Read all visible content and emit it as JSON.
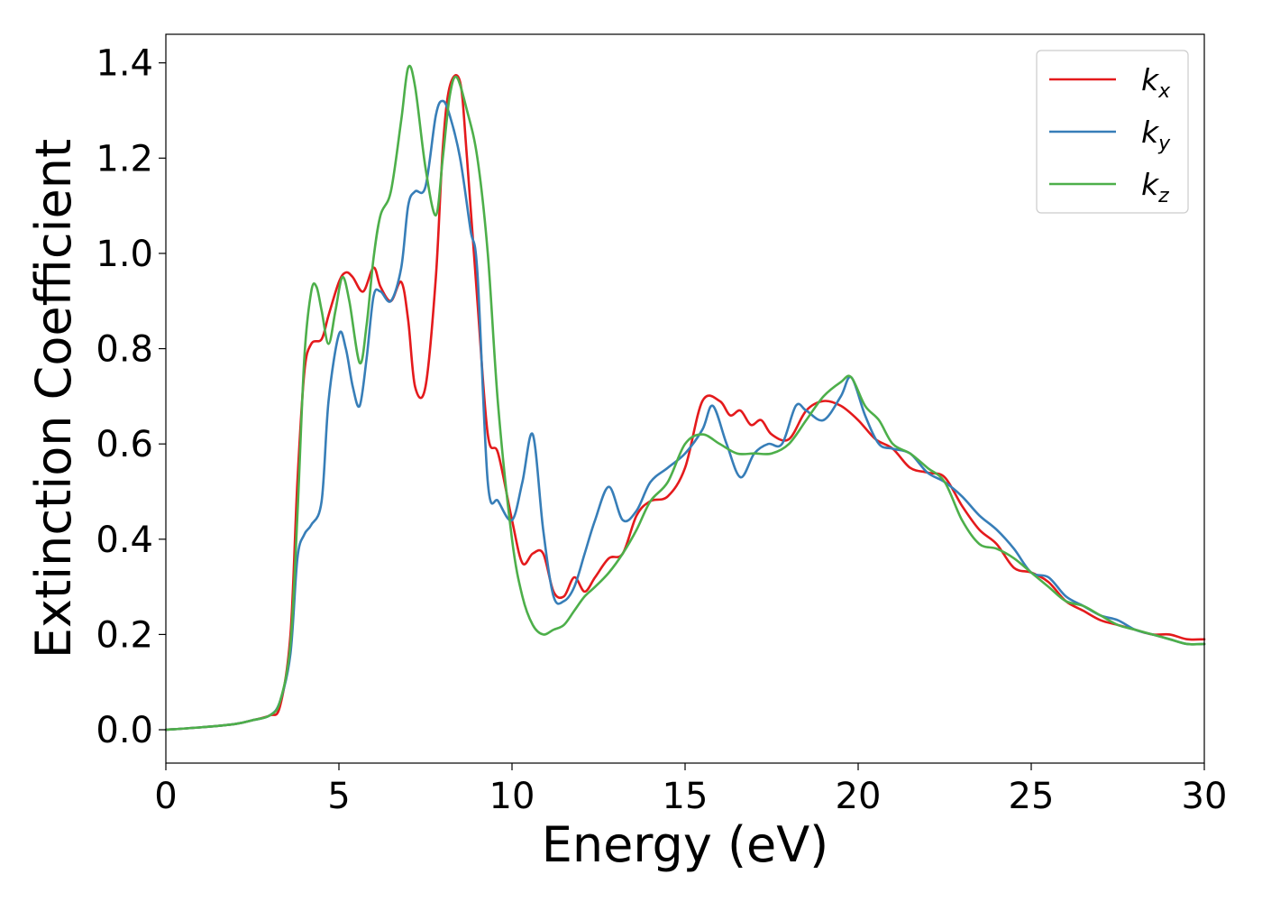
{
  "chart_data": {
    "type": "line",
    "title": "",
    "xlabel": "Energy (eV)",
    "ylabel": "Extinction Coefficient",
    "xlim": [
      0,
      30
    ],
    "ylim": [
      -0.07,
      1.46
    ],
    "xticks": [
      0,
      5,
      10,
      15,
      20,
      25,
      30
    ],
    "xtick_labels": [
      "0",
      "5",
      "10",
      "15",
      "20",
      "25",
      "30"
    ],
    "yticks": [
      0.0,
      0.2,
      0.4,
      0.6,
      0.8,
      1.0,
      1.2,
      1.4
    ],
    "ytick_labels": [
      "0.0",
      "0.2",
      "0.4",
      "0.6",
      "0.8",
      "1.0",
      "1.2",
      "1.4"
    ],
    "grid": false,
    "legend_position": "top-right",
    "series": [
      {
        "name": "k_x",
        "legend_base": "k",
        "legend_sub": "x",
        "color": "#e41a1c",
        "x": [
          0,
          1,
          2,
          2.5,
          3,
          3.3,
          3.6,
          3.8,
          4.0,
          4.2,
          4.5,
          4.7,
          5.0,
          5.2,
          5.4,
          5.7,
          6.0,
          6.2,
          6.5,
          6.8,
          7.0,
          7.2,
          7.5,
          7.8,
          8.0,
          8.2,
          8.5,
          8.7,
          9.0,
          9.3,
          9.6,
          10.0,
          10.3,
          10.6,
          10.9,
          11.2,
          11.5,
          11.8,
          12.1,
          12.4,
          12.8,
          13.2,
          13.6,
          14.0,
          14.5,
          15.0,
          15.5,
          16.0,
          16.3,
          16.6,
          16.9,
          17.2,
          17.5,
          18.0,
          18.5,
          19.0,
          19.5,
          20.0,
          20.5,
          21.0,
          21.5,
          22.0,
          22.5,
          23.0,
          23.5,
          24.0,
          24.5,
          25.0,
          25.5,
          26.0,
          26.5,
          27.0,
          27.5,
          28.0,
          28.5,
          29.0,
          29.5,
          30.0
        ],
        "y": [
          0.0,
          0.005,
          0.012,
          0.02,
          0.03,
          0.05,
          0.2,
          0.52,
          0.75,
          0.81,
          0.82,
          0.87,
          0.94,
          0.96,
          0.95,
          0.92,
          0.97,
          0.93,
          0.9,
          0.94,
          0.86,
          0.72,
          0.72,
          0.95,
          1.22,
          1.35,
          1.36,
          1.2,
          0.9,
          0.62,
          0.58,
          0.44,
          0.35,
          0.37,
          0.37,
          0.29,
          0.28,
          0.32,
          0.29,
          0.32,
          0.36,
          0.37,
          0.45,
          0.48,
          0.49,
          0.55,
          0.69,
          0.69,
          0.66,
          0.67,
          0.64,
          0.65,
          0.62,
          0.61,
          0.67,
          0.69,
          0.68,
          0.65,
          0.61,
          0.59,
          0.55,
          0.54,
          0.53,
          0.47,
          0.42,
          0.39,
          0.34,
          0.33,
          0.31,
          0.27,
          0.25,
          0.23,
          0.22,
          0.21,
          0.2,
          0.2,
          0.19,
          0.19
        ]
      },
      {
        "name": "k_y",
        "legend_base": "k",
        "legend_sub": "y",
        "color": "#377eb8",
        "x": [
          0,
          1,
          2,
          2.5,
          3,
          3.3,
          3.6,
          3.8,
          4.0,
          4.2,
          4.5,
          4.7,
          5.0,
          5.2,
          5.4,
          5.6,
          5.8,
          6.0,
          6.2,
          6.5,
          6.8,
          7.0,
          7.2,
          7.5,
          7.8,
          8.0,
          8.2,
          8.5,
          8.8,
          9.0,
          9.3,
          9.6,
          10.0,
          10.3,
          10.6,
          10.9,
          11.2,
          11.5,
          11.8,
          12.1,
          12.4,
          12.8,
          13.2,
          13.6,
          14.0,
          14.5,
          15.0,
          15.5,
          15.8,
          16.2,
          16.6,
          17.0,
          17.4,
          17.8,
          18.2,
          18.5,
          19.0,
          19.5,
          19.8,
          20.2,
          20.6,
          21.0,
          21.5,
          22.0,
          22.5,
          23.0,
          23.5,
          24.0,
          24.5,
          25.0,
          25.5,
          26.0,
          26.5,
          27.0,
          27.5,
          28.0,
          28.5,
          29.0,
          29.5,
          30.0
        ],
        "y": [
          0.0,
          0.005,
          0.012,
          0.02,
          0.03,
          0.06,
          0.16,
          0.36,
          0.41,
          0.43,
          0.48,
          0.69,
          0.83,
          0.8,
          0.72,
          0.68,
          0.78,
          0.91,
          0.92,
          0.9,
          0.97,
          1.1,
          1.13,
          1.14,
          1.29,
          1.32,
          1.29,
          1.2,
          1.05,
          0.96,
          0.52,
          0.48,
          0.44,
          0.52,
          0.62,
          0.42,
          0.28,
          0.27,
          0.3,
          0.37,
          0.44,
          0.51,
          0.44,
          0.46,
          0.52,
          0.55,
          0.58,
          0.63,
          0.68,
          0.6,
          0.53,
          0.58,
          0.6,
          0.6,
          0.68,
          0.67,
          0.65,
          0.7,
          0.74,
          0.66,
          0.6,
          0.59,
          0.58,
          0.54,
          0.52,
          0.49,
          0.45,
          0.42,
          0.38,
          0.33,
          0.32,
          0.28,
          0.26,
          0.24,
          0.23,
          0.21,
          0.2,
          0.19,
          0.18,
          0.18
        ]
      },
      {
        "name": "k_z",
        "legend_base": "k",
        "legend_sub": "z",
        "color": "#4daf4a",
        "x": [
          0,
          1,
          2,
          2.5,
          3,
          3.3,
          3.6,
          3.8,
          4.0,
          4.2,
          4.35,
          4.5,
          4.7,
          4.9,
          5.1,
          5.3,
          5.6,
          5.8,
          6.0,
          6.2,
          6.5,
          6.8,
          7.0,
          7.2,
          7.5,
          7.8,
          8.0,
          8.2,
          8.4,
          8.7,
          9.0,
          9.3,
          9.6,
          10.0,
          10.3,
          10.6,
          10.9,
          11.2,
          11.5,
          11.8,
          12.1,
          12.4,
          12.8,
          13.2,
          13.6,
          14.0,
          14.5,
          15.0,
          15.5,
          16.0,
          16.5,
          17.0,
          17.5,
          18.0,
          18.5,
          19.0,
          19.5,
          19.8,
          20.2,
          20.6,
          21.0,
          21.5,
          22.0,
          22.5,
          23.0,
          23.5,
          24.0,
          24.5,
          25.0,
          25.5,
          26.0,
          26.5,
          27.0,
          27.5,
          28.0,
          28.5,
          29.0,
          29.5,
          30.0
        ],
        "y": [
          0.0,
          0.005,
          0.012,
          0.02,
          0.03,
          0.06,
          0.18,
          0.45,
          0.78,
          0.92,
          0.93,
          0.88,
          0.81,
          0.88,
          0.95,
          0.9,
          0.77,
          0.85,
          0.99,
          1.08,
          1.13,
          1.28,
          1.39,
          1.35,
          1.18,
          1.08,
          1.2,
          1.33,
          1.37,
          1.3,
          1.2,
          1.0,
          0.68,
          0.4,
          0.28,
          0.22,
          0.2,
          0.21,
          0.22,
          0.25,
          0.28,
          0.3,
          0.33,
          0.37,
          0.42,
          0.48,
          0.52,
          0.6,
          0.62,
          0.6,
          0.58,
          0.58,
          0.58,
          0.6,
          0.65,
          0.7,
          0.73,
          0.74,
          0.68,
          0.65,
          0.6,
          0.58,
          0.55,
          0.52,
          0.44,
          0.39,
          0.38,
          0.36,
          0.33,
          0.3,
          0.27,
          0.26,
          0.24,
          0.22,
          0.21,
          0.2,
          0.19,
          0.18,
          0.18
        ]
      }
    ]
  }
}
